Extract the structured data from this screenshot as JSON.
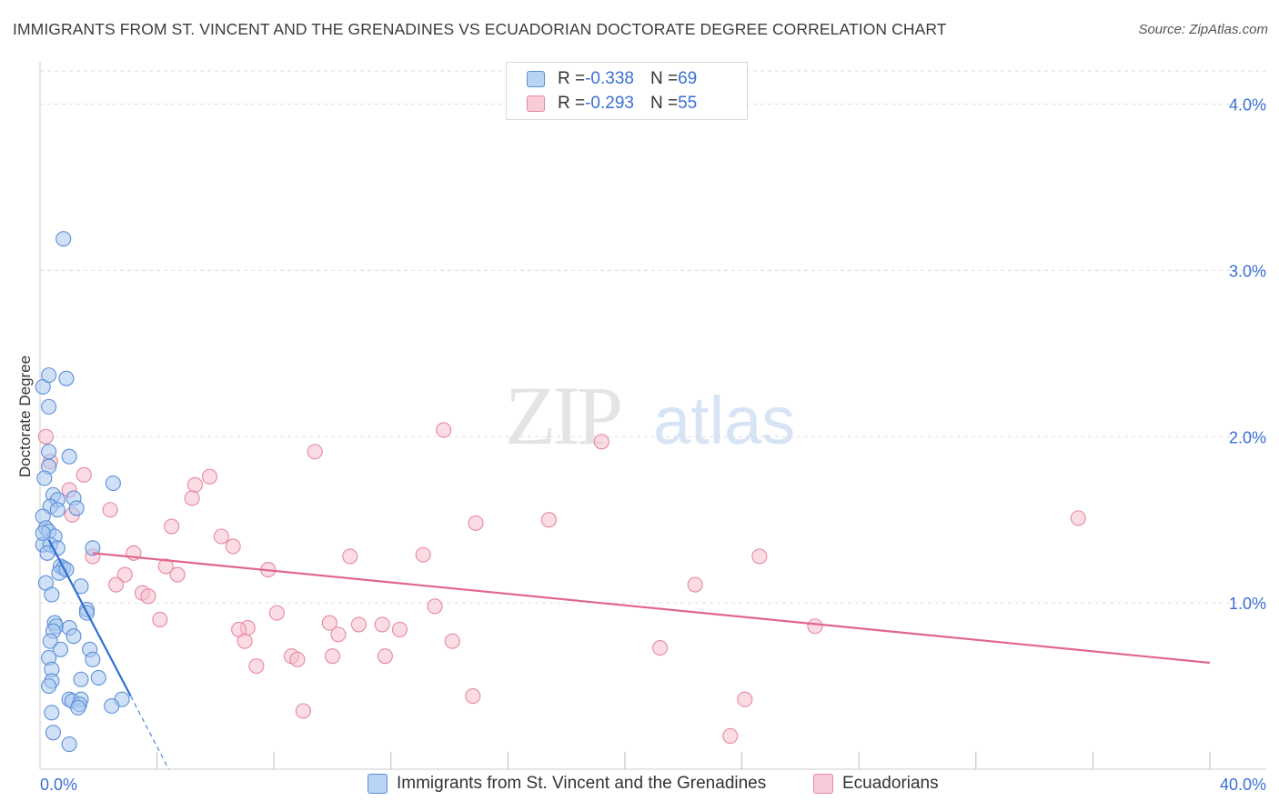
{
  "title": "IMMIGRANTS FROM ST. VINCENT AND THE GRENADINES VS ECUADORIAN DOCTORATE DEGREE CORRELATION CHART",
  "source": "Source: ZipAtlas.com",
  "watermark": {
    "zip": "ZIP",
    "atlas": "atlas"
  },
  "colors": {
    "blue_fill": "#a9c8f0",
    "blue_stroke": "#5b8fd8",
    "blue_line": "#2f6fd0",
    "pink_fill": "#f7bfd0",
    "pink_stroke": "#e6889f",
    "pink_line": "#e0668e",
    "axis_text": "#3b6fd4",
    "grid": "#dddddd"
  },
  "legend": {
    "rows": [
      {
        "r_label": "R = ",
        "r_value": "-0.338",
        "n_label": "N = ",
        "n_value": "69"
      },
      {
        "r_label": "R = ",
        "r_value": "-0.293",
        "n_label": "N = ",
        "n_value": "55"
      }
    ]
  },
  "bottom_legend": {
    "blue": "Immigrants from St. Vincent and the Grenadines",
    "pink": "Ecuadorians"
  },
  "chart_data": {
    "type": "scatter",
    "title": "IMMIGRANTS FROM ST. VINCENT AND THE GRENADINES VS ECUADORIAN DOCTORATE DEGREE CORRELATION CHART",
    "xlabel": "",
    "ylabel": "Doctorate Degree",
    "xlim": [
      0,
      40
    ],
    "ylim": [
      0,
      4.2
    ],
    "x_tick_labels": [
      {
        "value": 0,
        "label": "0.0%"
      },
      {
        "value": 40,
        "label": "40.0%"
      }
    ],
    "x_minor_ticks": [
      4,
      8,
      12,
      16,
      20,
      24,
      28,
      32,
      36,
      40
    ],
    "y_ticks": [
      {
        "value": 1,
        "label": "1.0%"
      },
      {
        "value": 2,
        "label": "2.0%"
      },
      {
        "value": 3,
        "label": "3.0%"
      },
      {
        "value": 4,
        "label": "4.0%"
      }
    ],
    "grid": true,
    "series": [
      {
        "name": "Immigrants from St. Vincent and the Grenadines",
        "color": "blue",
        "R": -0.338,
        "N": 69,
        "trend": {
          "x": [
            0.3,
            3.1
          ],
          "y": [
            1.38,
            0.44
          ]
        },
        "trend_dashed": {
          "x": [
            3.1,
            4.4
          ],
          "y": [
            0.44,
            0.0
          ]
        },
        "points": [
          [
            0.8,
            3.19
          ],
          [
            0.1,
            2.3
          ],
          [
            0.3,
            2.37
          ],
          [
            0.9,
            2.35
          ],
          [
            0.3,
            2.18
          ],
          [
            0.3,
            1.91
          ],
          [
            1.0,
            1.88
          ],
          [
            0.3,
            1.82
          ],
          [
            0.15,
            1.75
          ],
          [
            2.5,
            1.72
          ],
          [
            0.45,
            1.65
          ],
          [
            0.6,
            1.62
          ],
          [
            1.15,
            1.63
          ],
          [
            0.35,
            1.58
          ],
          [
            0.6,
            1.56
          ],
          [
            1.25,
            1.57
          ],
          [
            0.1,
            1.52
          ],
          [
            0.2,
            1.45
          ],
          [
            0.3,
            1.43
          ],
          [
            0.5,
            1.4
          ],
          [
            0.1,
            1.35
          ],
          [
            0.35,
            1.35
          ],
          [
            0.6,
            1.33
          ],
          [
            1.8,
            1.33
          ],
          [
            0.7,
            1.22
          ],
          [
            0.8,
            1.21
          ],
          [
            0.65,
            1.18
          ],
          [
            0.2,
            1.12
          ],
          [
            1.4,
            1.1
          ],
          [
            0.4,
            1.05
          ],
          [
            1.6,
            0.96
          ],
          [
            1.6,
            0.94
          ],
          [
            0.5,
            0.88
          ],
          [
            0.55,
            0.86
          ],
          [
            1.0,
            0.85
          ],
          [
            0.45,
            0.83
          ],
          [
            1.15,
            0.8
          ],
          [
            0.35,
            0.77
          ],
          [
            0.7,
            0.72
          ],
          [
            1.7,
            0.72
          ],
          [
            0.3,
            0.67
          ],
          [
            1.8,
            0.66
          ],
          [
            0.4,
            0.6
          ],
          [
            2.0,
            0.55
          ],
          [
            0.4,
            0.53
          ],
          [
            1.4,
            0.54
          ],
          [
            0.3,
            0.5
          ],
          [
            1.0,
            0.42
          ],
          [
            1.1,
            0.41
          ],
          [
            1.4,
            0.42
          ],
          [
            1.35,
            0.39
          ],
          [
            2.8,
            0.42
          ],
          [
            2.45,
            0.38
          ],
          [
            1.3,
            0.37
          ],
          [
            0.4,
            0.34
          ],
          [
            0.45,
            0.22
          ],
          [
            1.0,
            0.15
          ],
          [
            0.1,
            1.42
          ],
          [
            0.25,
            1.3
          ],
          [
            0.9,
            1.2
          ]
        ]
      },
      {
        "name": "Ecuadorians",
        "color": "pink",
        "R": -0.293,
        "N": 55,
        "trend": {
          "x": [
            1.8,
            40.0
          ],
          "y": [
            1.3,
            0.64
          ]
        },
        "points": [
          [
            0.2,
            2.0
          ],
          [
            0.35,
            1.85
          ],
          [
            1.5,
            1.77
          ],
          [
            1.0,
            1.68
          ],
          [
            1.1,
            1.53
          ],
          [
            2.4,
            1.56
          ],
          [
            13.8,
            2.04
          ],
          [
            9.4,
            1.91
          ],
          [
            19.2,
            1.97
          ],
          [
            5.8,
            1.76
          ],
          [
            5.3,
            1.71
          ],
          [
            5.2,
            1.63
          ],
          [
            4.5,
            1.46
          ],
          [
            14.9,
            1.48
          ],
          [
            17.4,
            1.5
          ],
          [
            35.5,
            1.51
          ],
          [
            6.2,
            1.4
          ],
          [
            6.6,
            1.34
          ],
          [
            3.2,
            1.3
          ],
          [
            1.8,
            1.28
          ],
          [
            10.6,
            1.28
          ],
          [
            13.1,
            1.29
          ],
          [
            24.6,
            1.28
          ],
          [
            4.3,
            1.22
          ],
          [
            7.8,
            1.2
          ],
          [
            2.9,
            1.17
          ],
          [
            4.7,
            1.17
          ],
          [
            2.6,
            1.11
          ],
          [
            3.5,
            1.06
          ],
          [
            3.7,
            1.04
          ],
          [
            22.4,
            1.11
          ],
          [
            13.5,
            0.98
          ],
          [
            8.1,
            0.94
          ],
          [
            4.1,
            0.9
          ],
          [
            9.9,
            0.88
          ],
          [
            10.9,
            0.87
          ],
          [
            11.7,
            0.87
          ],
          [
            7.1,
            0.85
          ],
          [
            12.3,
            0.84
          ],
          [
            6.8,
            0.84
          ],
          [
            10.2,
            0.81
          ],
          [
            26.5,
            0.86
          ],
          [
            7.0,
            0.77
          ],
          [
            14.1,
            0.77
          ],
          [
            21.2,
            0.73
          ],
          [
            8.6,
            0.68
          ],
          [
            10.0,
            0.68
          ],
          [
            11.8,
            0.68
          ],
          [
            8.8,
            0.66
          ],
          [
            7.4,
            0.62
          ],
          [
            14.8,
            0.44
          ],
          [
            24.1,
            0.42
          ],
          [
            9.0,
            0.35
          ],
          [
            23.6,
            0.2
          ]
        ]
      }
    ]
  }
}
